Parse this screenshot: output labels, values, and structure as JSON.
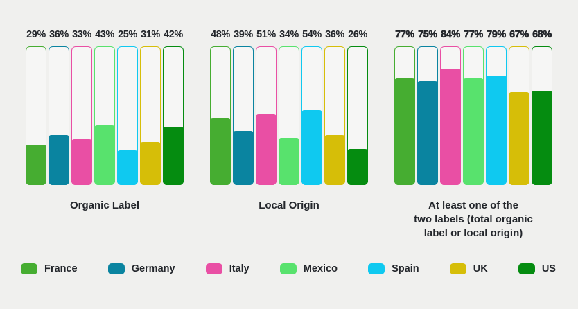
{
  "page": {
    "background": "#f0f0ee",
    "text_color": "#23262b"
  },
  "chart_data": {
    "type": "bar",
    "subtype": "percentage-filled-capacity-bars",
    "unit": "%",
    "ylim": [
      0,
      100
    ],
    "grid": false,
    "legend_position": "bottom",
    "categories": [
      "France",
      "Germany",
      "Italy",
      "Mexico",
      "Spain",
      "UK",
      "US"
    ],
    "panels": [
      {
        "caption": "Organic Label",
        "values": [
          29,
          36,
          33,
          43,
          25,
          31,
          42
        ],
        "value_labels": [
          "29%",
          "36%",
          "33%",
          "43%",
          "25%",
          "31%",
          "42%"
        ],
        "bold_value_labels": false
      },
      {
        "caption": "Local Origin",
        "values": [
          48,
          39,
          51,
          34,
          54,
          36,
          26
        ],
        "value_labels": [
          "48%",
          "39%",
          "51%",
          "34%",
          "54%",
          "36%",
          "26%"
        ],
        "bold_value_labels": false
      },
      {
        "caption": "At least one of the\ntwo labels (total organic\nlabel or local origin)",
        "values": [
          77,
          75,
          84,
          77,
          79,
          67,
          68
        ],
        "value_labels": [
          "77%",
          "75%",
          "84%",
          "77%",
          "79%",
          "67%",
          "68%"
        ],
        "bold_value_labels": true
      }
    ]
  },
  "legend": {
    "items": [
      {
        "label": "France",
        "color": "#46ad31"
      },
      {
        "label": "Germany",
        "color": "#0a84a0"
      },
      {
        "label": "Italy",
        "color": "#e94fa4"
      },
      {
        "label": "Mexico",
        "color": "#58e26d"
      },
      {
        "label": "Spain",
        "color": "#0fc9f0"
      },
      {
        "label": "UK",
        "color": "#d6be08"
      },
      {
        "label": "US",
        "color": "#058c10"
      }
    ]
  }
}
